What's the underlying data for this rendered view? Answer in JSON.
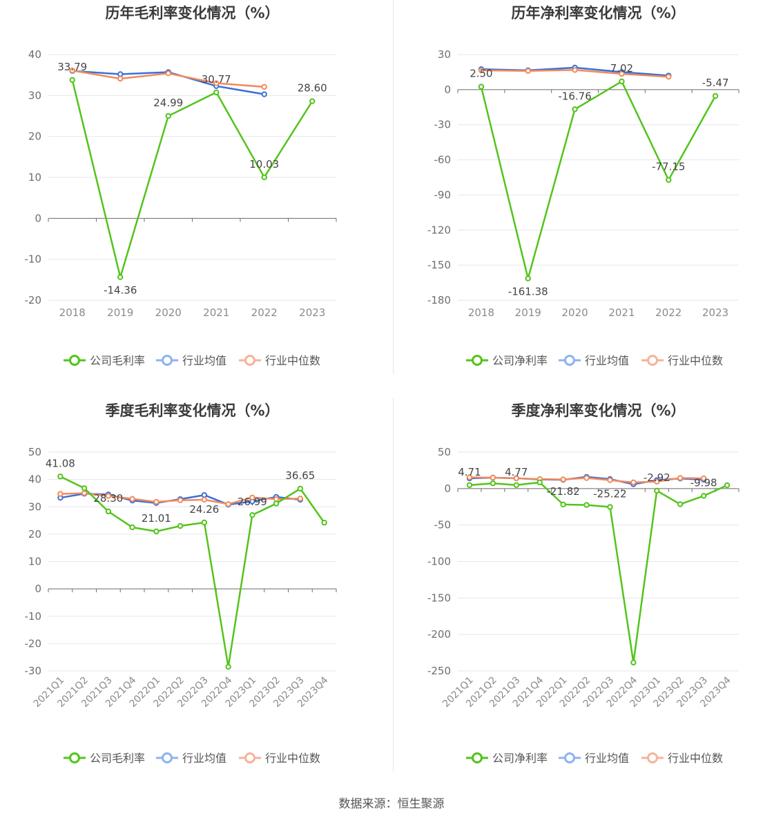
{
  "source": "数据来源：恒生聚源",
  "colors": {
    "company": "#52c41a",
    "avg": "#3b6fd8",
    "median": "#f08a5d"
  },
  "chart_data": [
    {
      "type": "line",
      "title": "历年毛利率变化情况（%）",
      "categories": [
        "2018",
        "2019",
        "2020",
        "2021",
        "2022",
        "2023"
      ],
      "ylim": [
        -20,
        40
      ],
      "yticks": [
        40,
        30,
        20,
        10,
        0,
        -10,
        -20
      ],
      "legend": [
        "公司毛利率",
        "行业均值",
        "行业中位数"
      ],
      "legend_position": "bottom",
      "series": [
        {
          "name": "公司毛利率",
          "values": [
            33.79,
            -14.36,
            24.99,
            30.77,
            10.03,
            28.6
          ],
          "labels": [
            "33.79",
            "-14.36",
            "24.99",
            "30.77",
            "10.03",
            "28.60"
          ]
        },
        {
          "name": "行业均值",
          "values": [
            36.0,
            35.2,
            35.7,
            32.3,
            30.3,
            null
          ]
        },
        {
          "name": "行业中位数",
          "values": [
            36.1,
            34.1,
            35.4,
            33.0,
            32.1,
            null
          ]
        }
      ]
    },
    {
      "type": "line",
      "title": "历年净利率变化情况（%）",
      "categories": [
        "2018",
        "2019",
        "2020",
        "2021",
        "2022",
        "2023"
      ],
      "ylim": [
        -180,
        30
      ],
      "yticks": [
        30,
        0,
        -30,
        -60,
        -90,
        -120,
        -150,
        -180
      ],
      "legend": [
        "公司净利率",
        "行业均值",
        "行业中位数"
      ],
      "legend_position": "bottom",
      "series": [
        {
          "name": "公司净利率",
          "values": [
            2.5,
            -161.38,
            -16.76,
            7.02,
            -77.15,
            -5.47
          ],
          "labels": [
            "2.50",
            "-161.38",
            "-16.76",
            "7.02",
            "-77.15",
            "-5.47"
          ]
        },
        {
          "name": "行业均值",
          "values": [
            17.5,
            16.5,
            18.8,
            15.0,
            12.0,
            null
          ]
        },
        {
          "name": "行业中位数",
          "values": [
            16.5,
            16.0,
            16.8,
            13.5,
            11.0,
            null
          ]
        }
      ]
    },
    {
      "type": "line",
      "title": "季度毛利率变化情况（%）",
      "categories": [
        "2021Q1",
        "2021Q2",
        "2021Q3",
        "2021Q4",
        "2022Q1",
        "2022Q2",
        "2022Q3",
        "2022Q4",
        "2023Q1",
        "2023Q2",
        "2023Q3",
        "2023Q4"
      ],
      "ylim": [
        -30,
        50
      ],
      "yticks": [
        50,
        40,
        30,
        20,
        10,
        0,
        -10,
        -20,
        -30
      ],
      "legend": [
        "公司毛利率",
        "行业均值",
        "行业中位数"
      ],
      "legend_position": "bottom",
      "series": [
        {
          "name": "公司毛利率",
          "values": [
            41.08,
            36.8,
            28.3,
            22.5,
            21.01,
            23.0,
            24.26,
            -28.5,
            26.99,
            31.2,
            36.65,
            24.2
          ],
          "labels": [
            "41.08",
            "",
            "28.30",
            "",
            "21.01",
            "",
            "24.26",
            "",
            "26.99",
            "",
            "36.65",
            ""
          ]
        },
        {
          "name": "行业均值",
          "values": [
            33.3,
            34.8,
            34.5,
            32.3,
            31.4,
            32.8,
            34.3,
            30.8,
            32.0,
            33.6,
            32.6,
            null
          ]
        },
        {
          "name": "行业中位数",
          "values": [
            34.7,
            35.0,
            34.0,
            32.9,
            31.8,
            32.4,
            32.6,
            31.0,
            33.4,
            32.8,
            33.0,
            null
          ]
        }
      ]
    },
    {
      "type": "line",
      "title": "季度净利率变化情况（%）",
      "categories": [
        "2021Q1",
        "2021Q2",
        "2021Q3",
        "2021Q4",
        "2022Q1",
        "2022Q2",
        "2022Q3",
        "2022Q4",
        "2023Q1",
        "2023Q2",
        "2023Q3",
        "2023Q4"
      ],
      "ylim": [
        -250,
        50
      ],
      "yticks": [
        50,
        0,
        -50,
        -100,
        -150,
        -200,
        -250
      ],
      "legend": [
        "公司净利率",
        "行业均值",
        "行业中位数"
      ],
      "legend_position": "bottom",
      "series": [
        {
          "name": "公司净利率",
          "values": [
            4.71,
            7.2,
            4.77,
            8.5,
            -21.82,
            -22.5,
            -25.22,
            -238.5,
            -2.92,
            -21.5,
            -9.98,
            4.5
          ],
          "labels": [
            "4.71",
            "",
            "4.77",
            "",
            "-21.82",
            "",
            "-25.22",
            "",
            "-2.92",
            "",
            "-9.98",
            ""
          ]
        },
        {
          "name": "行业均值",
          "values": [
            14.0,
            15.0,
            14.2,
            12.5,
            12.0,
            16.0,
            13.0,
            6.0,
            11.5,
            13.8,
            12.2,
            null
          ]
        },
        {
          "name": "行业中位数",
          "values": [
            15.5,
            15.0,
            14.0,
            13.0,
            12.5,
            14.5,
            11.5,
            8.5,
            9.5,
            14.5,
            14.0,
            null
          ]
        }
      ]
    }
  ]
}
